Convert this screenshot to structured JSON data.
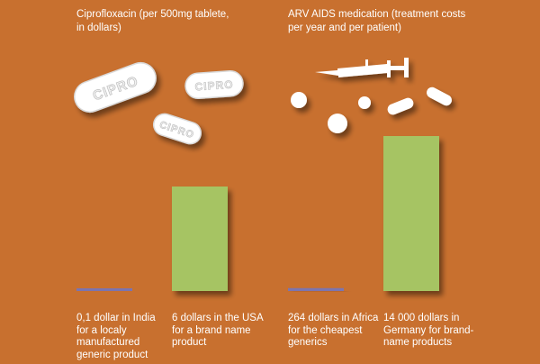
{
  "chart_data": [
    {
      "type": "bar",
      "title": "Ciprofloxacin (per 500mg tablete,\nin dollars)",
      "categories": [
        "0,1 dollar in India\nfor a localy\nmanufactured\ngeneric product",
        "6 dollars in the USA\nfor a brand name\nproduct"
      ],
      "values": [
        0.1,
        6
      ],
      "colors": [
        "#7b74b0",
        "#a6c463"
      ],
      "pill_text": "CIPRO"
    },
    {
      "type": "bar",
      "title": "ARV AIDS medication (treatment costs\nper year and per patient)",
      "categories": [
        "264 dollars in Africa\nfor the cheapest\ngenerics",
        "14 000 dollars in\nGermany for brand-\nname products"
      ],
      "values": [
        264,
        14000
      ],
      "colors": [
        "#7b74b0",
        "#a6c463"
      ]
    }
  ],
  "colors": {
    "background": "#c8702f",
    "pill": "#ffffff",
    "shadow": "#8a4a1c"
  }
}
